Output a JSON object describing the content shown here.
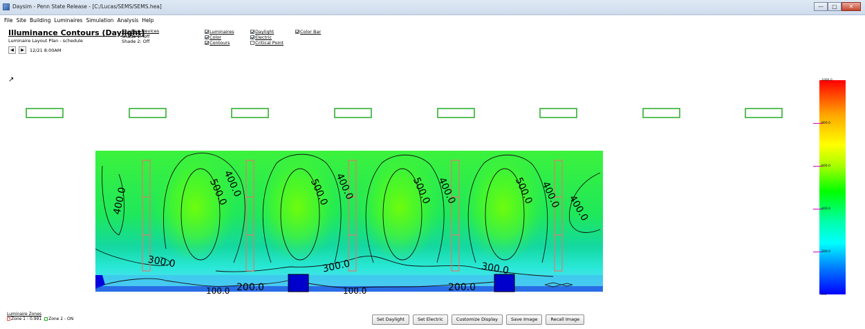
{
  "window": {
    "title": "Daysim - Penn State Release - [C:/Lucas/SEMS/SEMS.hea]"
  },
  "menu": [
    "File",
    "Site",
    "Building",
    "Luminaires",
    "Simulation",
    "Analysis",
    "Help"
  ],
  "header": {
    "title": "Illuminance Contours (Daylight)",
    "subtitle": "Luminaire Layout Plan - schedule",
    "date": "12/21 8:00AM",
    "prev_glyph": "◀",
    "next_glyph": "▶"
  },
  "shading": {
    "link": "Shading Devices",
    "shade1": "Shade 1: Off",
    "shade2": "Shade 2: Off"
  },
  "options": {
    "luminaires": {
      "label": "Luminaires",
      "checked": true
    },
    "color": {
      "label": "Color",
      "checked": true
    },
    "contours": {
      "label": "Contours",
      "checked": true
    },
    "daylight": {
      "label": "Daylight",
      "checked": true
    },
    "electric": {
      "label": "Electric",
      "checked": true
    },
    "critical_point": {
      "label": "Critical Point",
      "checked": false
    },
    "color_bar": {
      "label": "Color Bar",
      "checked": true
    }
  },
  "north_arrow": "↗",
  "contours": {
    "labels": [
      "400.0",
      "500.0",
      "400.0",
      "500.0",
      "400.0",
      "500.0",
      "400.0",
      "500.0",
      "400.0",
      "400.0",
      "300.0",
      "300.0",
      "300.0",
      "200.0",
      "200.0",
      "100.0",
      "100.0"
    ]
  },
  "colorbar": {
    "labels": [
      "1000.0",
      "800.0",
      "600.0",
      "400.0",
      "200.0",
      "0.0"
    ],
    "colors": [
      "#ff0000",
      "#ffa500",
      "#ffff00",
      "#00ff00",
      "#00ffff",
      "#0000ff"
    ]
  },
  "zones": {
    "title": "Luminaire Zones",
    "zone1": {
      "label": "Zone 1 - 0.991",
      "color": "#e0524a"
    },
    "zone2": {
      "label": "Zone 2 - ON",
      "color": "#22aa22"
    }
  },
  "buttons": {
    "set_daylight": "Set Daylight",
    "set_electric": "Set Electric",
    "customize_display": "Customize Display",
    "save_image": "Save Image",
    "recall_image": "Recall Image"
  },
  "window_controls": {
    "minimize": "—",
    "maximize": "□",
    "close": "✕"
  }
}
